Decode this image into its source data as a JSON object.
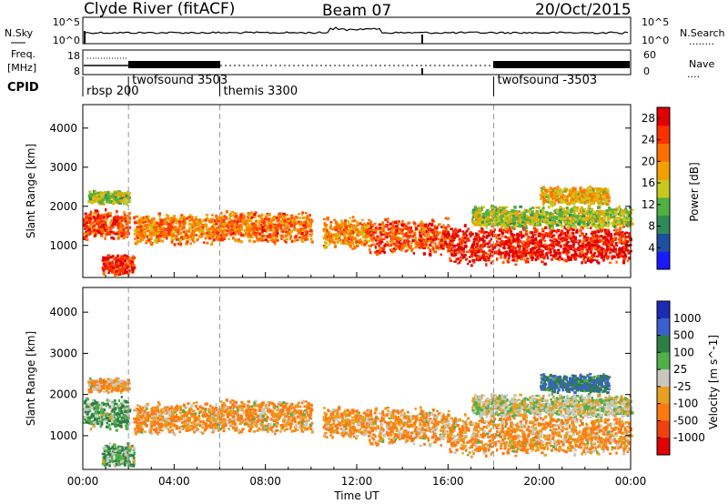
{
  "header": {
    "station": "Clyde River (fitACF)",
    "beam": "Beam 07",
    "date": "20/Oct/2015"
  },
  "left_labels": {
    "nsky": "N.Sky",
    "freq_line1": "Freq.",
    "freq_line2": "[MHz]",
    "cpid": "CPID"
  },
  "right_labels": {
    "nsearch": "N.Search",
    "nsearch_dots": "........",
    "nave": "Nave",
    "nave_dots": "...."
  },
  "noise_axis": {
    "left_ticks": [
      "10^5",
      "10^0"
    ],
    "right_ticks": [
      "10^5",
      "10^0"
    ]
  },
  "freq_axis": {
    "left_ticks": [
      "18",
      "8"
    ],
    "right_ticks": [
      "60",
      "0"
    ]
  },
  "cpid_segments": [
    {
      "label": "rbsp 200",
      "start_h": 0.0
    },
    {
      "label": "twofsound 3503",
      "start_h": 2.0
    },
    {
      "label": "themis 3300",
      "start_h": 6.0
    },
    {
      "label": "twofsound -3503",
      "start_h": 18.0
    }
  ],
  "chart_data": [
    {
      "type": "heatmap",
      "panel": "power",
      "xlabel": "Time UT",
      "ylabel": "Slant Range [km]",
      "xlim": [
        0,
        24
      ],
      "ylim": [
        180,
        4600
      ],
      "x_ticks": [
        "00:00",
        "04:00",
        "08:00",
        "12:00",
        "16:00",
        "20:00",
        "00:00"
      ],
      "y_ticks": [
        1000,
        2000,
        3000,
        4000
      ],
      "colorbar": {
        "label": "Power [dB]",
        "ticks": [
          4,
          8,
          12,
          16,
          20,
          24,
          28
        ],
        "range": [
          0,
          30
        ],
        "colors": [
          "#1a1aff",
          "#1f4fa0",
          "#2e8b57",
          "#50b040",
          "#c8c820",
          "#f0a000",
          "#ff7000",
          "#ff3000",
          "#e00000"
        ]
      },
      "scatter_bands": [
        {
          "t0": 0.0,
          "t1": 2.0,
          "r_center": 1550,
          "r_width": 350,
          "level": 24
        },
        {
          "t0": 0.2,
          "t1": 2.0,
          "r_center": 2250,
          "r_width": 150,
          "level": 14
        },
        {
          "t0": 0.8,
          "t1": 2.2,
          "r_center": 550,
          "r_width": 250,
          "level": 26
        },
        {
          "t0": 2.2,
          "t1": 6.0,
          "r_center": 1450,
          "r_width": 350,
          "level": 21
        },
        {
          "t0": 6.0,
          "t1": 10.0,
          "r_center": 1500,
          "r_width": 350,
          "level": 22
        },
        {
          "t0": 10.5,
          "t1": 12.5,
          "r_center": 1350,
          "r_width": 350,
          "level": 20
        },
        {
          "t0": 12.5,
          "t1": 16.0,
          "r_center": 1250,
          "r_width": 400,
          "level": 24
        },
        {
          "t0": 16.0,
          "t1": 24.0,
          "r_center": 1050,
          "r_width": 450,
          "level": 27
        },
        {
          "t0": 17.0,
          "t1": 24.0,
          "r_center": 1750,
          "r_width": 250,
          "level": 14
        },
        {
          "t0": 20.0,
          "t1": 23.0,
          "r_center": 2300,
          "r_width": 200,
          "level": 18
        }
      ]
    },
    {
      "type": "heatmap",
      "panel": "velocity",
      "xlabel": "Time UT",
      "ylabel": "Slant Range [km]",
      "xlim": [
        0,
        24
      ],
      "ylim": [
        180,
        4600
      ],
      "x_ticks": [
        "00:00",
        "04:00",
        "08:00",
        "12:00",
        "16:00",
        "20:00",
        "00:00"
      ],
      "y_ticks": [
        1000,
        2000,
        3000,
        4000
      ],
      "colorbar": {
        "label": "Velocity [m s^-1]",
        "ticks": [
          "1000",
          "500",
          "100",
          "25",
          "-25",
          "-100",
          "-500",
          "-1000"
        ],
        "colors": [
          "#1c2bb5",
          "#3a5fcf",
          "#2e7d45",
          "#4fb04a",
          "#c8c8c0",
          "#e8a020",
          "#ff7a10",
          "#f04010",
          "#e00000"
        ]
      },
      "scatter_bands": [
        {
          "t0": 0.0,
          "t1": 2.0,
          "r_center": 1550,
          "r_width": 350,
          "value": 100
        },
        {
          "t0": 0.2,
          "t1": 2.0,
          "r_center": 2250,
          "r_width": 150,
          "value": -100
        },
        {
          "t0": 0.8,
          "t1": 2.2,
          "r_center": 550,
          "r_width": 250,
          "value": 100
        },
        {
          "t0": 2.2,
          "t1": 6.0,
          "r_center": 1450,
          "r_width": 350,
          "value": -100
        },
        {
          "t0": 6.0,
          "t1": 10.0,
          "r_center": 1500,
          "r_width": 350,
          "value": -100
        },
        {
          "t0": 10.5,
          "t1": 12.5,
          "r_center": 1350,
          "r_width": 350,
          "value": -100
        },
        {
          "t0": 12.5,
          "t1": 16.0,
          "r_center": 1250,
          "r_width": 400,
          "value": -100
        },
        {
          "t0": 16.0,
          "t1": 24.0,
          "r_center": 1050,
          "r_width": 450,
          "value": -100
        },
        {
          "t0": 17.0,
          "t1": 24.0,
          "r_center": 1750,
          "r_width": 250,
          "value": 0
        },
        {
          "t0": 20.0,
          "t1": 23.0,
          "r_center": 2300,
          "r_width": 200,
          "value": 500
        }
      ]
    }
  ]
}
